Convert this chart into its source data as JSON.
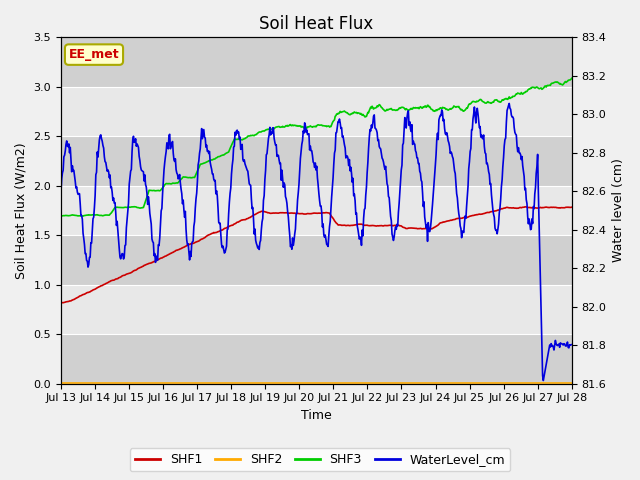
{
  "title": "Soil Heat Flux",
  "xlabel": "Time",
  "ylabel_left": "Soil Heat Flux (W/m2)",
  "ylabel_right": "Water level (cm)",
  "annotation": "EE_met",
  "xlim_days": [
    0,
    15
  ],
  "ylim_left": [
    0.0,
    3.5
  ],
  "ylim_right": [
    81.6,
    83.4
  ],
  "x_tick_labels": [
    "Jul 13",
    "Jul 14",
    "Jul 15",
    "Jul 16",
    "Jul 17",
    "Jul 18",
    "Jul 19",
    "Jul 20",
    "Jul 21",
    "Jul 22",
    "Jul 23",
    "Jul 24",
    "Jul 25",
    "Jul 26",
    "Jul 27",
    "Jul 28"
  ],
  "legend_labels": [
    "SHF1",
    "SHF2",
    "SHF3",
    "WaterLevel_cm"
  ],
  "colors": {
    "SHF1": "#cc0000",
    "SHF2": "#ffaa00",
    "SHF3": "#00cc00",
    "WaterLevel_cm": "#0000dd"
  },
  "bg_color": "#e8e8e8",
  "plot_bg_color": "#f0f0f0",
  "band_color": "#d0d0d0",
  "annotation_bg": "#ffffcc",
  "annotation_fg": "#cc0000",
  "annotation_border": "#aaaa00",
  "yticks_left": [
    0.0,
    0.5,
    1.0,
    1.5,
    2.0,
    2.5,
    3.0,
    3.5
  ],
  "yticks_right": [
    81.6,
    81.8,
    82.0,
    82.2,
    82.4,
    82.6,
    82.8,
    83.0,
    83.2,
    83.4
  ],
  "n_days": 15,
  "pts_per_day": 48,
  "seed": 42
}
